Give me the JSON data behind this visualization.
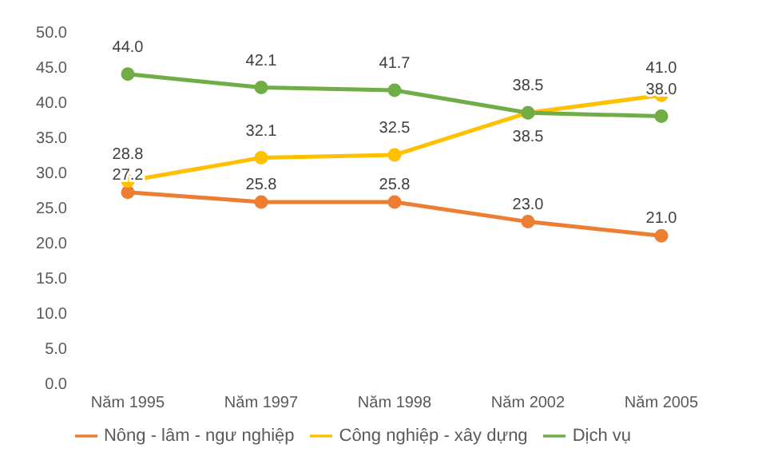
{
  "chart_data": {
    "type": "line",
    "categories": [
      "Năm 1995",
      "Năm 1997",
      "Năm 1998",
      "Năm 2002",
      "Năm 2005"
    ],
    "series": [
      {
        "name": "Nông - lâm - ngư nghiệp",
        "color": "#ed7d31",
        "values": [
          27.2,
          25.8,
          25.8,
          23.0,
          21.0
        ],
        "value_labels": [
          "27.2",
          "25.8",
          "25.8",
          "23.0",
          "21.0"
        ]
      },
      {
        "name": "Công nghiệp - xây dựng",
        "color": "#ffc000",
        "values": [
          28.8,
          32.1,
          32.5,
          38.5,
          41.0
        ],
        "value_labels": [
          "28.8",
          "32.1",
          "32.5",
          "38.5",
          "41.0"
        ]
      },
      {
        "name": "Dịch vụ",
        "color": "#70ad47",
        "values": [
          44.0,
          42.1,
          41.7,
          38.5,
          38.0
        ],
        "value_labels": [
          "44.0",
          "42.1",
          "41.7",
          "38.5",
          "38.0"
        ]
      }
    ],
    "ylim": [
      0,
      50
    ],
    "yticks": [
      {
        "value": 0,
        "label": "0.0"
      },
      {
        "value": 5,
        "label": "5.0"
      },
      {
        "value": 10,
        "label": "10.0"
      },
      {
        "value": 15,
        "label": "15.0"
      },
      {
        "value": 20,
        "label": "20.0"
      },
      {
        "value": 25,
        "label": "25.0"
      },
      {
        "value": 30,
        "label": "30.0"
      },
      {
        "value": 35,
        "label": "35.0"
      },
      {
        "value": 40,
        "label": "40.0"
      },
      {
        "value": 45,
        "label": "45.0"
      },
      {
        "value": 50,
        "label": "50.0"
      }
    ],
    "grid": false,
    "legend": "bottom",
    "marker": "circle",
    "line_style": "solid"
  }
}
